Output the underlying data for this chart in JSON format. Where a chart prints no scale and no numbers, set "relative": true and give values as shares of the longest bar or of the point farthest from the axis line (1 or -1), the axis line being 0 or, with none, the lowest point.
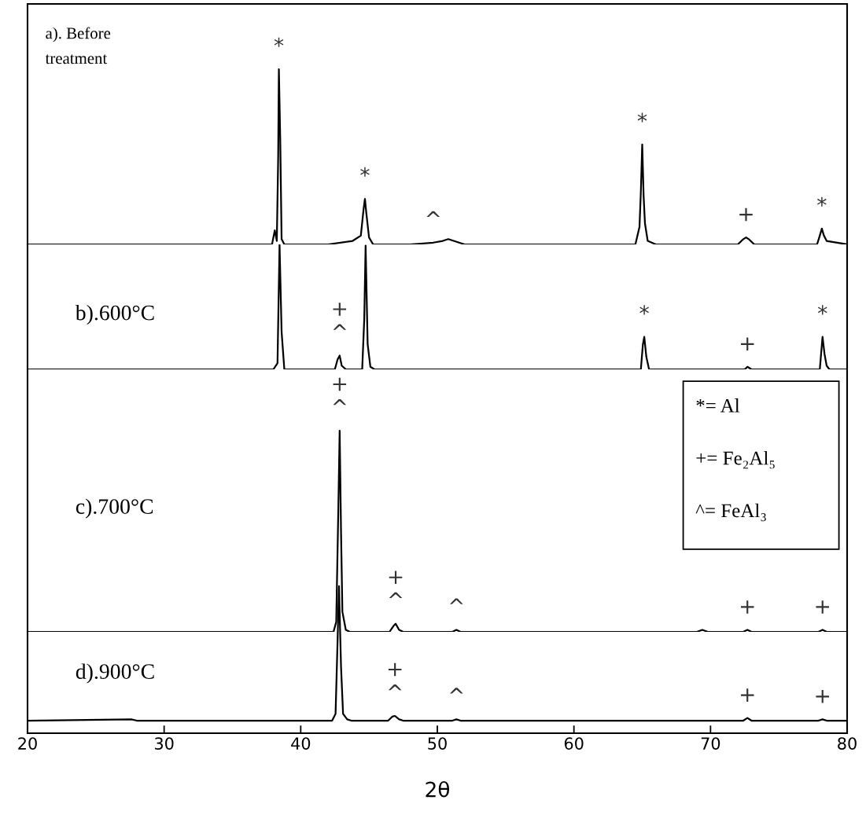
{
  "chart_data": [
    {
      "type": "line",
      "title": "a). Before\ntreatment",
      "relative": true,
      "xlim": [
        20,
        80
      ],
      "tick_labels": false,
      "grid": false,
      "legend": false,
      "series": [
        {
          "color": "#000000",
          "x": [
            20,
            25,
            30,
            35,
            37.9,
            38.1,
            38.25,
            38.35,
            38.4,
            38.5,
            38.6,
            38.8,
            42,
            43.8,
            44.4,
            44.6,
            44.7,
            44.8,
            45,
            45.3,
            48,
            49.7,
            50.4,
            50.8,
            51.2,
            52,
            60,
            64.5,
            64.8,
            64.9,
            65,
            65.1,
            65.2,
            65.4,
            66,
            72,
            72.4,
            72.6,
            72.8,
            73.2,
            77.8,
            78.0,
            78.15,
            78.3,
            78.5,
            80
          ],
          "values": [
            0,
            0,
            0,
            0,
            0,
            0.08,
            0.02,
            0.5,
            1.0,
            0.6,
            0.03,
            0,
            0,
            0.02,
            0.05,
            0.2,
            0.26,
            0.18,
            0.04,
            0,
            0,
            0.01,
            0.02,
            0.03,
            0.02,
            0,
            0,
            0,
            0.1,
            0.3,
            0.57,
            0.28,
            0.12,
            0.02,
            0,
            0,
            0.03,
            0.04,
            0.03,
            0,
            0,
            0.05,
            0.09,
            0.05,
            0.02,
            0
          ]
        }
      ],
      "annotations": [
        {
          "text": "*",
          "x": 38.4,
          "y": 1.0
        },
        {
          "text": "*",
          "x": 44.7,
          "y": 0.26
        },
        {
          "text": "^",
          "x": 49.7,
          "y": 0.01
        },
        {
          "text": "*",
          "x": 65,
          "y": 0.57
        },
        {
          "text": "+",
          "x": 72.6,
          "y": 0.04
        },
        {
          "text": "*",
          "x": 78.15,
          "y": 0.09
        }
      ]
    },
    {
      "type": "line",
      "title": "b).600°C",
      "relative": true,
      "xlim": [
        20,
        80
      ],
      "tick_labels": false,
      "grid": false,
      "legend": false,
      "series": [
        {
          "color": "#000000",
          "x": [
            20,
            38,
            38.3,
            38.45,
            38.6,
            38.8,
            42.5,
            42.7,
            42.85,
            43,
            43.3,
            44.5,
            44.65,
            44.75,
            44.9,
            45.1,
            45.4,
            64.9,
            65.05,
            65.15,
            65.3,
            65.5,
            72.5,
            72.7,
            73,
            78.0,
            78.2,
            78.35,
            78.5,
            78.7,
            80
          ],
          "values": [
            0,
            0,
            0.05,
            1.0,
            0.3,
            0,
            0,
            0.08,
            0.11,
            0.03,
            0,
            0,
            0.4,
            0.99,
            0.2,
            0.02,
            0,
            0,
            0.2,
            0.26,
            0.1,
            0,
            0,
            0.02,
            0,
            0,
            0.26,
            0.12,
            0.03,
            0,
            0
          ]
        }
      ],
      "annotations": [
        {
          "text": "^",
          "x": 42.85,
          "y": 0.11
        },
        {
          "text": "+",
          "x": 42.85,
          "y": 0.11
        },
        {
          "text": "*",
          "x": 65.15,
          "y": 0.26
        },
        {
          "text": "+",
          "x": 72.7,
          "y": 0.02
        },
        {
          "text": "*",
          "x": 78.2,
          "y": 0.26
        }
      ]
    },
    {
      "type": "line",
      "title": "c).700°C",
      "relative": true,
      "xlim": [
        20,
        80
      ],
      "tick_labels": false,
      "grid": false,
      "legend": false,
      "series": [
        {
          "color": "#000000",
          "x": [
            20,
            42.4,
            42.6,
            42.75,
            42.85,
            42.95,
            43.05,
            43.3,
            43.6,
            46.5,
            46.8,
            46.95,
            47.2,
            47.5,
            51.1,
            51.4,
            51.7,
            69,
            69.4,
            69.8,
            72.4,
            72.7,
            73,
            77.9,
            78.2,
            78.5,
            80
          ],
          "values": [
            0,
            0,
            0.05,
            0.6,
            1.0,
            0.5,
            0.1,
            0.01,
            0,
            0,
            0.03,
            0.04,
            0.01,
            0,
            0,
            0.01,
            0,
            0,
            0.01,
            0,
            0,
            0.01,
            0,
            0,
            0.01,
            0,
            0
          ]
        }
      ],
      "annotations": [
        {
          "text": "^",
          "x": 42.85,
          "y": 1.0
        },
        {
          "text": "+",
          "x": 42.85,
          "y": 1.0
        },
        {
          "text": "^",
          "x": 46.95,
          "y": 0.04
        },
        {
          "text": "+",
          "x": 46.95,
          "y": 0.04
        },
        {
          "text": "^",
          "x": 51.4,
          "y": 0.01
        },
        {
          "text": "+",
          "x": 72.7,
          "y": 0.01
        },
        {
          "text": "+",
          "x": 78.2,
          "y": 0.01
        },
        "*= Al",
        "+= Fe₂Al₅",
        "^= FeAl₃"
      ]
    },
    {
      "type": "line",
      "title": "d).900°C",
      "relative": true,
      "xlim": [
        20,
        80
      ],
      "xticks": [
        20,
        30,
        40,
        50,
        60,
        70,
        80
      ],
      "xlabel": "2θ",
      "tick_labels": "x",
      "grid": false,
      "legend": false,
      "series": [
        {
          "color": "#000000",
          "x": [
            20,
            27.6,
            28,
            42.3,
            42.55,
            42.7,
            42.8,
            42.95,
            43.1,
            43.4,
            43.7,
            46.4,
            46.7,
            46.9,
            47.2,
            47.5,
            51.1,
            51.4,
            51.7,
            72.4,
            72.7,
            73,
            77.9,
            78.2,
            78.5,
            80
          ],
          "values": [
            0.085,
            0.094,
            0.085,
            0.085,
            0.131,
            0.634,
            1.0,
            0.451,
            0.131,
            0.094,
            0.085,
            0.085,
            0.112,
            0.117,
            0.094,
            0.085,
            0.085,
            0.094,
            0.085,
            0.085,
            0.103,
            0.085,
            0.085,
            0.094,
            0.085,
            0.085
          ]
        }
      ],
      "annotations": [
        {
          "text": "^",
          "x": 46.9,
          "y": 0.117
        },
        {
          "text": "+",
          "x": 46.9,
          "y": 0.117
        },
        {
          "text": "^",
          "x": 51.4,
          "y": 0.094
        },
        {
          "text": "+",
          "x": 72.7,
          "y": 0.103
        },
        {
          "text": "+",
          "x": 78.2,
          "y": 0.094
        }
      ]
    }
  ]
}
